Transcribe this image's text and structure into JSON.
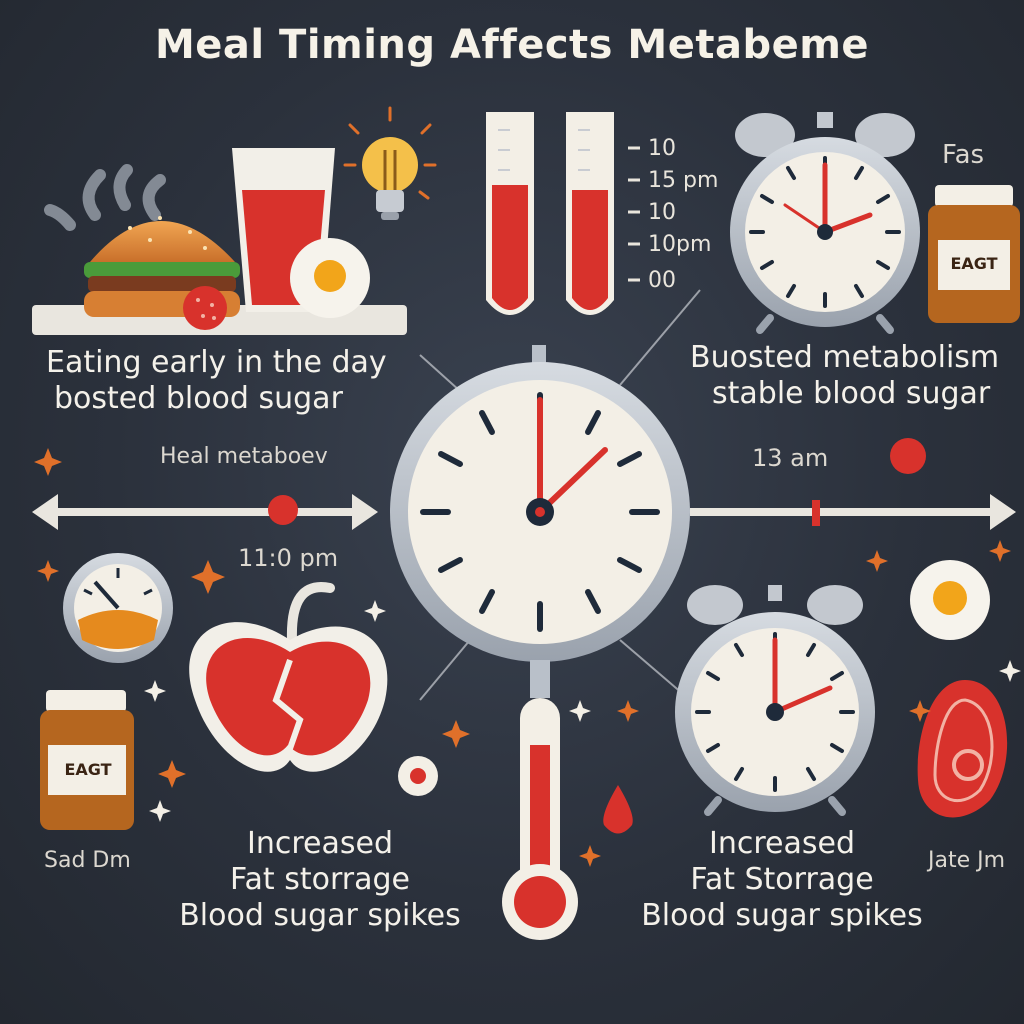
{
  "title": "Meal Timing Affects Metabeme",
  "top_right_label": "Fas",
  "tube_scale": [
    "10",
    "15 pm",
    "10",
    "10pm",
    "00"
  ],
  "jar_label": "EAGT",
  "caption_top_left": {
    "line1": "Eating early in the day",
    "line2": "bosted  blood sugar"
  },
  "caption_top_right": {
    "line1": "Buosted metabolism",
    "line2": "stable blood sugar"
  },
  "timeline": {
    "left_label": "Heal metaboev",
    "left_time": "11:0 pm",
    "right_time": "13 am"
  },
  "bottom_left_label": "Sad Dm",
  "bottom_right_label": "Jate Jm",
  "caption_bottom_left": {
    "line1": "Increased",
    "line2": "Fat storrage",
    "line3": "Blood sugar spikes"
  },
  "caption_bottom_right": {
    "line1": "Increased",
    "line2": "Fat Storrage",
    "line3": "Blood sugar spikes"
  },
  "colors": {
    "background": "#2b313c",
    "accent_red": "#d8322c",
    "clock_face": "#f3efe6",
    "clock_rim": "#b9c0c9",
    "spark": "#e0702a"
  },
  "icons": [
    "burger-icon",
    "drink-glass-icon",
    "fried-egg-icon",
    "strawberry-icon",
    "lightbulb-icon",
    "test-tube-icon",
    "alarm-clock-icon",
    "jar-icon",
    "wall-clock-icon",
    "gauge-icon",
    "apple-icon",
    "thermometer-icon",
    "blood-drop-icon",
    "meat-icon",
    "sparkle-icon"
  ]
}
